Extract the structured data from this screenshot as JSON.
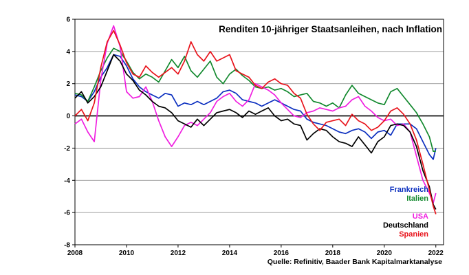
{
  "chart_data": {
    "type": "line",
    "title": "Renditen 10-jähriger Staatsanleihen, nach Inflation",
    "source": "Quelle: Refinitiv, Baader Bank Kapitalmarktanalyse",
    "xlabel": "",
    "ylabel": "",
    "xlim": [
      2008,
      2022.3
    ],
    "ylim": [
      -8,
      6
    ],
    "xticks": [
      2008,
      2010,
      2012,
      2014,
      2016,
      2018,
      2020,
      2022
    ],
    "yticks": [
      -8,
      -6,
      -4,
      -2,
      0,
      2,
      4,
      6
    ],
    "grid": "horizontal",
    "legend_position": "bottom-right",
    "colors": {
      "Frankreich": "#0b2fbf",
      "Italien": "#12892e",
      "USA": "#f01ee0",
      "Deutschland": "#000000",
      "Spanien": "#e8141c"
    },
    "series": [
      {
        "name": "Frankreich",
        "points": [
          [
            2008.0,
            1.3
          ],
          [
            2008.25,
            1.2
          ],
          [
            2008.5,
            0.9
          ],
          [
            2008.75,
            1.5
          ],
          [
            2009.0,
            2.4
          ],
          [
            2009.25,
            3.0
          ],
          [
            2009.5,
            3.8
          ],
          [
            2009.75,
            3.7
          ],
          [
            2010.0,
            3.1
          ],
          [
            2010.25,
            2.3
          ],
          [
            2010.5,
            1.8
          ],
          [
            2010.75,
            1.5
          ],
          [
            2011.0,
            1.3
          ],
          [
            2011.25,
            1.1
          ],
          [
            2011.5,
            1.4
          ],
          [
            2011.75,
            1.3
          ],
          [
            2012.0,
            0.6
          ],
          [
            2012.25,
            0.8
          ],
          [
            2012.5,
            0.7
          ],
          [
            2012.75,
            0.9
          ],
          [
            2013.0,
            0.7
          ],
          [
            2013.25,
            0.9
          ],
          [
            2013.5,
            1.1
          ],
          [
            2013.75,
            1.5
          ],
          [
            2014.0,
            1.6
          ],
          [
            2014.25,
            1.4
          ],
          [
            2014.5,
            1.0
          ],
          [
            2014.75,
            0.9
          ],
          [
            2015.0,
            0.8
          ],
          [
            2015.25,
            0.6
          ],
          [
            2015.5,
            0.8
          ],
          [
            2015.75,
            1.0
          ],
          [
            2016.0,
            0.8
          ],
          [
            2016.25,
            0.6
          ],
          [
            2016.5,
            0.4
          ],
          [
            2016.75,
            0.3
          ],
          [
            2017.0,
            -0.2
          ],
          [
            2017.25,
            -0.4
          ],
          [
            2017.5,
            -0.5
          ],
          [
            2017.75,
            -0.6
          ],
          [
            2018.0,
            -0.8
          ],
          [
            2018.25,
            -1.0
          ],
          [
            2018.5,
            -1.1
          ],
          [
            2018.75,
            -0.9
          ],
          [
            2019.0,
            -0.8
          ],
          [
            2019.25,
            -1.0
          ],
          [
            2019.5,
            -1.4
          ],
          [
            2019.75,
            -1.0
          ],
          [
            2020.0,
            -0.9
          ],
          [
            2020.25,
            -1.2
          ],
          [
            2020.5,
            -0.5
          ],
          [
            2020.75,
            -0.5
          ],
          [
            2021.0,
            -0.5
          ],
          [
            2021.25,
            -0.8
          ],
          [
            2021.5,
            -1.6
          ],
          [
            2021.75,
            -2.4
          ],
          [
            2021.9,
            -2.7
          ],
          [
            2022.0,
            -2.0
          ]
        ]
      },
      {
        "name": "Italien",
        "points": [
          [
            2008.0,
            1.4
          ],
          [
            2008.25,
            1.3
          ],
          [
            2008.5,
            0.9
          ],
          [
            2008.75,
            1.8
          ],
          [
            2009.0,
            2.8
          ],
          [
            2009.25,
            3.6
          ],
          [
            2009.5,
            4.2
          ],
          [
            2009.75,
            4.0
          ],
          [
            2010.0,
            3.4
          ],
          [
            2010.25,
            2.7
          ],
          [
            2010.5,
            2.3
          ],
          [
            2010.75,
            2.6
          ],
          [
            2011.0,
            2.4
          ],
          [
            2011.25,
            2.1
          ],
          [
            2011.5,
            2.8
          ],
          [
            2011.75,
            3.5
          ],
          [
            2012.0,
            3.0
          ],
          [
            2012.25,
            3.7
          ],
          [
            2012.5,
            2.8
          ],
          [
            2012.75,
            2.4
          ],
          [
            2013.0,
            2.9
          ],
          [
            2013.25,
            3.4
          ],
          [
            2013.5,
            2.4
          ],
          [
            2013.75,
            2.0
          ],
          [
            2014.0,
            2.6
          ],
          [
            2014.25,
            2.9
          ],
          [
            2014.5,
            2.5
          ],
          [
            2014.75,
            2.2
          ],
          [
            2015.0,
            1.8
          ],
          [
            2015.25,
            1.7
          ],
          [
            2015.5,
            1.8
          ],
          [
            2015.75,
            1.6
          ],
          [
            2016.0,
            1.7
          ],
          [
            2016.25,
            1.5
          ],
          [
            2016.5,
            1.2
          ],
          [
            2016.75,
            1.3
          ],
          [
            2017.0,
            1.4
          ],
          [
            2017.25,
            0.9
          ],
          [
            2017.5,
            0.8
          ],
          [
            2017.75,
            0.6
          ],
          [
            2018.0,
            0.8
          ],
          [
            2018.25,
            0.5
          ],
          [
            2018.5,
            1.3
          ],
          [
            2018.75,
            1.9
          ],
          [
            2019.0,
            1.4
          ],
          [
            2019.25,
            1.2
          ],
          [
            2019.5,
            1.0
          ],
          [
            2019.75,
            0.8
          ],
          [
            2020.0,
            0.7
          ],
          [
            2020.25,
            1.5
          ],
          [
            2020.5,
            1.7
          ],
          [
            2020.75,
            1.2
          ],
          [
            2021.0,
            0.7
          ],
          [
            2021.25,
            0.2
          ],
          [
            2021.5,
            -0.5
          ],
          [
            2021.75,
            -1.3
          ],
          [
            2021.9,
            -2.2
          ],
          [
            2022.0,
            -2.2
          ]
        ]
      },
      {
        "name": "USA",
        "points": [
          [
            2008.0,
            -0.5
          ],
          [
            2008.25,
            -0.2
          ],
          [
            2008.5,
            -1.0
          ],
          [
            2008.75,
            -1.6
          ],
          [
            2009.0,
            2.2
          ],
          [
            2009.25,
            4.5
          ],
          [
            2009.5,
            5.6
          ],
          [
            2009.75,
            4.3
          ],
          [
            2010.0,
            1.5
          ],
          [
            2010.25,
            1.1
          ],
          [
            2010.5,
            1.2
          ],
          [
            2010.75,
            1.8
          ],
          [
            2011.0,
            0.9
          ],
          [
            2011.25,
            -0.3
          ],
          [
            2011.5,
            -1.3
          ],
          [
            2011.75,
            -1.9
          ],
          [
            2012.0,
            -1.3
          ],
          [
            2012.25,
            -0.6
          ],
          [
            2012.5,
            -0.4
          ],
          [
            2012.75,
            -0.6
          ],
          [
            2013.0,
            -0.2
          ],
          [
            2013.25,
            0.2
          ],
          [
            2013.5,
            0.9
          ],
          [
            2013.75,
            1.2
          ],
          [
            2014.0,
            1.4
          ],
          [
            2014.25,
            0.9
          ],
          [
            2014.5,
            0.6
          ],
          [
            2014.75,
            1.0
          ],
          [
            2015.0,
            2.0
          ],
          [
            2015.25,
            1.8
          ],
          [
            2015.5,
            1.6
          ],
          [
            2015.75,
            1.3
          ],
          [
            2016.0,
            0.8
          ],
          [
            2016.25,
            0.4
          ],
          [
            2016.5,
            0.0
          ],
          [
            2016.75,
            -0.1
          ],
          [
            2017.0,
            0.2
          ],
          [
            2017.25,
            0.3
          ],
          [
            2017.5,
            0.5
          ],
          [
            2017.75,
            0.4
          ],
          [
            2018.0,
            0.3
          ],
          [
            2018.25,
            0.5
          ],
          [
            2018.5,
            0.6
          ],
          [
            2018.75,
            1.0
          ],
          [
            2019.0,
            1.2
          ],
          [
            2019.25,
            0.6
          ],
          [
            2019.5,
            0.3
          ],
          [
            2019.75,
            -0.1
          ],
          [
            2020.0,
            -0.3
          ],
          [
            2020.25,
            -0.2
          ],
          [
            2020.5,
            -0.6
          ],
          [
            2020.75,
            -0.5
          ],
          [
            2021.0,
            -1.0
          ],
          [
            2021.25,
            -2.5
          ],
          [
            2021.5,
            -4.0
          ],
          [
            2021.75,
            -4.8
          ],
          [
            2021.9,
            -5.4
          ],
          [
            2022.0,
            -4.8
          ]
        ]
      },
      {
        "name": "Deutschland",
        "points": [
          [
            2008.0,
            1.1
          ],
          [
            2008.25,
            1.5
          ],
          [
            2008.5,
            0.8
          ],
          [
            2008.75,
            1.2
          ],
          [
            2009.0,
            1.8
          ],
          [
            2009.25,
            2.8
          ],
          [
            2009.5,
            3.8
          ],
          [
            2009.75,
            3.4
          ],
          [
            2010.0,
            2.6
          ],
          [
            2010.25,
            2.2
          ],
          [
            2010.5,
            1.6
          ],
          [
            2010.75,
            1.3
          ],
          [
            2011.0,
            0.9
          ],
          [
            2011.25,
            0.6
          ],
          [
            2011.5,
            0.5
          ],
          [
            2011.75,
            0.2
          ],
          [
            2012.0,
            -0.3
          ],
          [
            2012.25,
            -0.5
          ],
          [
            2012.5,
            -0.7
          ],
          [
            2012.75,
            -0.2
          ],
          [
            2013.0,
            -0.6
          ],
          [
            2013.25,
            -0.2
          ],
          [
            2013.5,
            0.2
          ],
          [
            2013.75,
            0.3
          ],
          [
            2014.0,
            0.4
          ],
          [
            2014.25,
            0.2
          ],
          [
            2014.5,
            -0.1
          ],
          [
            2014.75,
            0.3
          ],
          [
            2015.0,
            0.1
          ],
          [
            2015.25,
            0.3
          ],
          [
            2015.5,
            0.5
          ],
          [
            2015.75,
            0.0
          ],
          [
            2016.0,
            -0.3
          ],
          [
            2016.25,
            -0.2
          ],
          [
            2016.5,
            -0.5
          ],
          [
            2016.75,
            -0.6
          ],
          [
            2017.0,
            -1.5
          ],
          [
            2017.25,
            -1.1
          ],
          [
            2017.5,
            -0.8
          ],
          [
            2017.75,
            -0.9
          ],
          [
            2018.0,
            -1.3
          ],
          [
            2018.25,
            -1.6
          ],
          [
            2018.5,
            -1.7
          ],
          [
            2018.75,
            -1.9
          ],
          [
            2019.0,
            -1.3
          ],
          [
            2019.25,
            -1.8
          ],
          [
            2019.5,
            -2.3
          ],
          [
            2019.75,
            -1.6
          ],
          [
            2020.0,
            -1.3
          ],
          [
            2020.25,
            -0.6
          ],
          [
            2020.5,
            -0.5
          ],
          [
            2020.75,
            -0.6
          ],
          [
            2021.0,
            -1.0
          ],
          [
            2021.25,
            -1.9
          ],
          [
            2021.5,
            -3.4
          ],
          [
            2021.75,
            -4.4
          ],
          [
            2021.9,
            -5.5
          ],
          [
            2022.0,
            -5.8
          ]
        ]
      },
      {
        "name": "Spanien",
        "points": [
          [
            2008.0,
            0.0
          ],
          [
            2008.25,
            0.4
          ],
          [
            2008.5,
            -0.3
          ],
          [
            2008.75,
            0.8
          ],
          [
            2009.0,
            3.0
          ],
          [
            2009.25,
            4.6
          ],
          [
            2009.5,
            5.3
          ],
          [
            2009.75,
            4.4
          ],
          [
            2010.0,
            3.3
          ],
          [
            2010.25,
            2.6
          ],
          [
            2010.5,
            2.4
          ],
          [
            2010.75,
            3.1
          ],
          [
            2011.0,
            2.7
          ],
          [
            2011.25,
            2.4
          ],
          [
            2011.5,
            2.7
          ],
          [
            2011.75,
            3.0
          ],
          [
            2012.0,
            2.6
          ],
          [
            2012.25,
            3.4
          ],
          [
            2012.5,
            4.6
          ],
          [
            2012.75,
            3.8
          ],
          [
            2013.0,
            3.4
          ],
          [
            2013.25,
            4.0
          ],
          [
            2013.5,
            3.4
          ],
          [
            2013.75,
            3.6
          ],
          [
            2014.0,
            3.8
          ],
          [
            2014.25,
            2.8
          ],
          [
            2014.5,
            2.6
          ],
          [
            2014.75,
            2.4
          ],
          [
            2015.0,
            1.9
          ],
          [
            2015.25,
            1.7
          ],
          [
            2015.5,
            2.1
          ],
          [
            2015.75,
            2.3
          ],
          [
            2016.0,
            2.0
          ],
          [
            2016.25,
            1.9
          ],
          [
            2016.5,
            1.4
          ],
          [
            2016.75,
            1.1
          ],
          [
            2017.0,
            0.1
          ],
          [
            2017.25,
            -0.5
          ],
          [
            2017.5,
            -0.9
          ],
          [
            2017.75,
            -0.4
          ],
          [
            2018.0,
            -0.3
          ],
          [
            2018.25,
            -0.2
          ],
          [
            2018.5,
            -0.6
          ],
          [
            2018.75,
            0.1
          ],
          [
            2019.0,
            -0.3
          ],
          [
            2019.25,
            -0.5
          ],
          [
            2019.5,
            -0.9
          ],
          [
            2019.75,
            -0.7
          ],
          [
            2020.0,
            -0.3
          ],
          [
            2020.25,
            0.3
          ],
          [
            2020.5,
            0.5
          ],
          [
            2020.75,
            0.1
          ],
          [
            2021.0,
            -0.5
          ],
          [
            2021.25,
            -1.5
          ],
          [
            2021.5,
            -3.0
          ],
          [
            2021.75,
            -4.6
          ],
          [
            2021.9,
            -5.6
          ],
          [
            2022.0,
            -6.1
          ]
        ]
      }
    ],
    "legend": [
      {
        "label": "Frankreich",
        "color": "#0b2fbf"
      },
      {
        "label": "Italien",
        "color": "#12892e"
      },
      {
        "label": "USA",
        "color": "#f01ee0"
      },
      {
        "label": "Deutschland",
        "color": "#000000"
      },
      {
        "label": "Spanien",
        "color": "#e8141c"
      }
    ]
  }
}
